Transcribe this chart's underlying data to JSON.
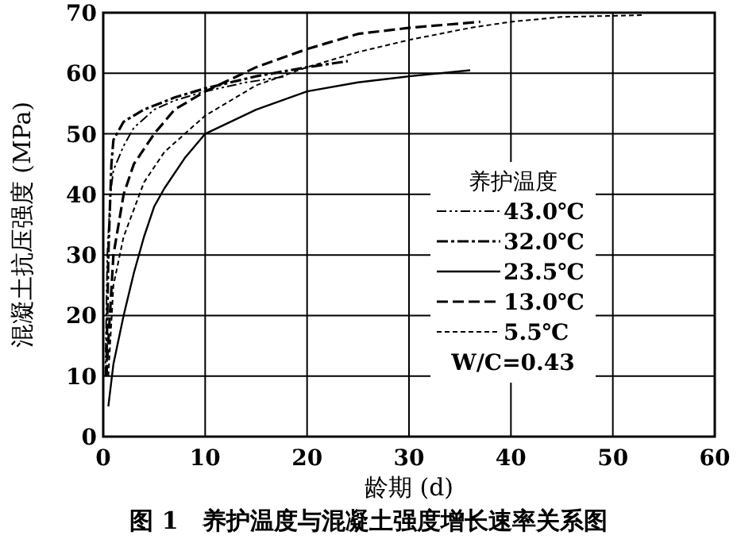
{
  "chart_data": {
    "type": "line",
    "title": "图 1　养护温度与混凝土强度增长速率关系图",
    "xlabel": "龄期 (d)",
    "ylabel": "混凝土抗压强度 (MPa)",
    "legend_title": "养护温度",
    "annotations": [
      "W/C=0.43"
    ],
    "xlim": [
      0,
      60
    ],
    "ylim": [
      0,
      70
    ],
    "xticks": [
      0,
      10,
      20,
      30,
      40,
      50,
      60
    ],
    "yticks": [
      0,
      10,
      20,
      30,
      40,
      50,
      60,
      70
    ],
    "grid": true,
    "legend": "right",
    "marker": "none",
    "series": [
      {
        "name": "43.0℃",
        "color": "#000000",
        "line_style": "dashdotdot",
        "x": [
          0.2,
          0.4,
          0.7,
          1,
          2,
          3,
          5,
          7,
          10,
          14,
          18
        ],
        "values": [
          10,
          30,
          40,
          44,
          48,
          51,
          54,
          55.5,
          57,
          58.5,
          59.5
        ]
      },
      {
        "name": "32.0℃",
        "color": "#000000",
        "line_style": "dashdot",
        "x": [
          0.3,
          0.5,
          0.8,
          1,
          2,
          4,
          7,
          10,
          15,
          20,
          24
        ],
        "values": [
          10,
          30,
          45,
          49,
          52,
          54,
          56,
          57.5,
          59.5,
          61,
          62
        ]
      },
      {
        "name": "23.5℃",
        "color": "#000000",
        "line_style": "solid",
        "x": [
          0.5,
          1,
          2,
          3,
          4,
          5,
          6,
          8,
          10,
          15,
          20,
          25,
          30,
          36
        ],
        "values": [
          5,
          12,
          20,
          27,
          33,
          38,
          41,
          46,
          50,
          54,
          57,
          58.5,
          59.5,
          60.5
        ]
      },
      {
        "name": "13.0℃",
        "color": "#000000",
        "line_style": "dashed",
        "x": [
          0.3,
          1,
          2,
          3,
          5,
          7,
          10,
          15,
          20,
          25,
          30,
          37
        ],
        "values": [
          10,
          30,
          40,
          45,
          50,
          54,
          57,
          61,
          64,
          66.5,
          67.5,
          68.5
        ]
      },
      {
        "name": "5.5℃",
        "color": "#000000",
        "line_style": "dotted",
        "x": [
          0.5,
          1,
          2,
          4,
          6,
          10,
          15,
          20,
          25,
          30,
          36,
          40,
          45,
          53
        ],
        "values": [
          10,
          25,
          33,
          42,
          47,
          53,
          58,
          61,
          63.5,
          65.5,
          67.5,
          68.5,
          69.3,
          69.6
        ]
      }
    ]
  }
}
